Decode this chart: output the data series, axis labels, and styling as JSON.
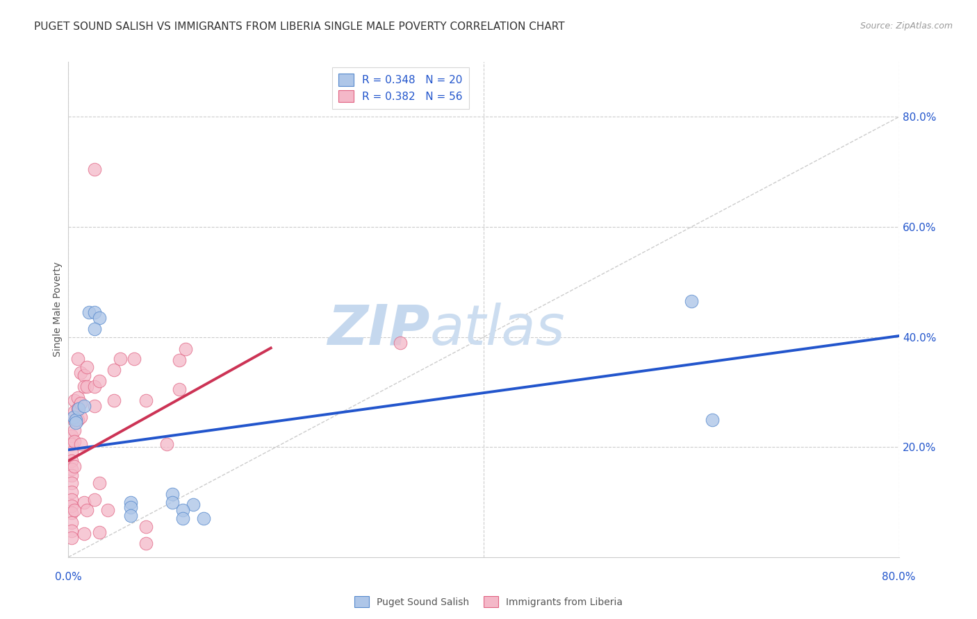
{
  "title": "PUGET SOUND SALISH VS IMMIGRANTS FROM LIBERIA SINGLE MALE POVERTY CORRELATION CHART",
  "source": "Source: ZipAtlas.com",
  "ylabel": "Single Male Poverty",
  "right_yticks": [
    "80.0%",
    "60.0%",
    "40.0%",
    "20.0%"
  ],
  "right_ytick_vals": [
    0.8,
    0.6,
    0.4,
    0.2
  ],
  "xmin": 0.0,
  "xmax": 0.8,
  "ymin": 0.0,
  "ymax": 0.9,
  "legend_label1": "R = 0.348   N = 20",
  "legend_label2": "R = 0.382   N = 56",
  "blue_scatter_x": [
    0.02,
    0.025,
    0.03,
    0.025,
    0.005,
    0.007,
    0.007,
    0.01,
    0.015,
    0.6,
    0.62,
    0.12,
    0.13,
    0.1,
    0.1,
    0.11,
    0.11,
    0.06,
    0.06,
    0.06
  ],
  "blue_scatter_y": [
    0.445,
    0.445,
    0.435,
    0.415,
    0.255,
    0.25,
    0.245,
    0.27,
    0.275,
    0.465,
    0.25,
    0.095,
    0.07,
    0.115,
    0.1,
    0.085,
    0.07,
    0.1,
    0.09,
    0.075
  ],
  "pink_scatter_x": [
    0.003,
    0.003,
    0.003,
    0.003,
    0.003,
    0.003,
    0.003,
    0.003,
    0.003,
    0.003,
    0.003,
    0.003,
    0.003,
    0.003,
    0.006,
    0.006,
    0.006,
    0.006,
    0.006,
    0.006,
    0.006,
    0.009,
    0.009,
    0.009,
    0.009,
    0.012,
    0.012,
    0.012,
    0.012,
    0.015,
    0.015,
    0.015,
    0.015,
    0.018,
    0.018,
    0.018,
    0.025,
    0.025,
    0.025,
    0.03,
    0.03,
    0.03,
    0.038,
    0.044,
    0.044,
    0.05,
    0.063,
    0.075,
    0.075,
    0.075,
    0.095,
    0.107,
    0.107,
    0.113,
    0.025,
    0.32
  ],
  "pink_scatter_y": [
    0.22,
    0.205,
    0.19,
    0.175,
    0.16,
    0.148,
    0.135,
    0.118,
    0.105,
    0.093,
    0.08,
    0.063,
    0.048,
    0.035,
    0.285,
    0.265,
    0.248,
    0.23,
    0.21,
    0.165,
    0.085,
    0.27,
    0.25,
    0.29,
    0.36,
    0.28,
    0.255,
    0.205,
    0.335,
    0.33,
    0.31,
    0.1,
    0.042,
    0.345,
    0.31,
    0.085,
    0.31,
    0.275,
    0.105,
    0.32,
    0.135,
    0.045,
    0.085,
    0.34,
    0.285,
    0.36,
    0.36,
    0.285,
    0.055,
    0.025,
    0.205,
    0.358,
    0.305,
    0.378,
    0.705,
    0.39
  ],
  "blue_color": "#aec6e8",
  "blue_edge": "#5588cc",
  "pink_color": "#f4b8c8",
  "pink_edge": "#e06080",
  "blue_line_color": "#2255cc",
  "pink_line_color": "#cc3355",
  "diagonal_color": "#cccccc",
  "watermark_zip": "ZIP",
  "watermark_atlas": "atlas",
  "watermark_color": "#ccddf0",
  "title_fontsize": 11,
  "source_fontsize": 9,
  "legend_fontsize": 11,
  "background_color": "#ffffff",
  "grid_color": "#cccccc",
  "blue_line_x0": 0.0,
  "blue_line_y0": 0.195,
  "blue_line_x1": 0.8,
  "blue_line_y1": 0.402,
  "pink_line_x0": 0.0,
  "pink_line_y0": 0.175,
  "pink_line_x1": 0.195,
  "pink_line_y1": 0.38
}
